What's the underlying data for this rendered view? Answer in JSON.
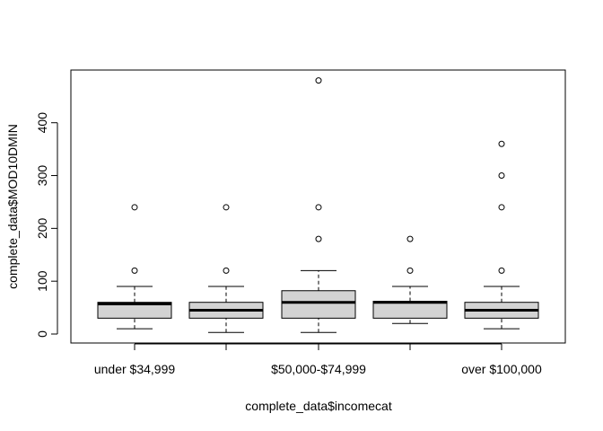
{
  "chart_data": {
    "type": "boxplot",
    "title": "",
    "xlabel": "complete_data$incomecat",
    "ylabel": "complete_data$MOD10DMIN",
    "ylim": [
      0,
      480
    ],
    "yticks": [
      0,
      100,
      200,
      300,
      400
    ],
    "tick_labels_shown": [
      "under $34,999",
      "",
      "$50,000-$74,999",
      "",
      "over $100,000"
    ],
    "box_fill": "#d3d3d3",
    "boxes": [
      {
        "whisker_low": 10,
        "q1": 30,
        "median": 57,
        "q3": 60,
        "whisker_high": 90,
        "outliers": [
          120,
          240
        ]
      },
      {
        "whisker_low": 3,
        "q1": 30,
        "median": 45,
        "q3": 60,
        "whisker_high": 90,
        "outliers": [
          120,
          240
        ]
      },
      {
        "whisker_low": 3,
        "q1": 30,
        "median": 60,
        "q3": 82,
        "whisker_high": 120,
        "outliers": [
          180,
          240,
          480
        ]
      },
      {
        "whisker_low": 20,
        "q1": 30,
        "median": 60,
        "q3": 62,
        "whisker_high": 90,
        "outliers": [
          120,
          180
        ]
      },
      {
        "whisker_low": 10,
        "q1": 30,
        "median": 45,
        "q3": 60,
        "whisker_high": 90,
        "outliers": [
          120,
          240,
          300,
          360
        ]
      }
    ]
  }
}
